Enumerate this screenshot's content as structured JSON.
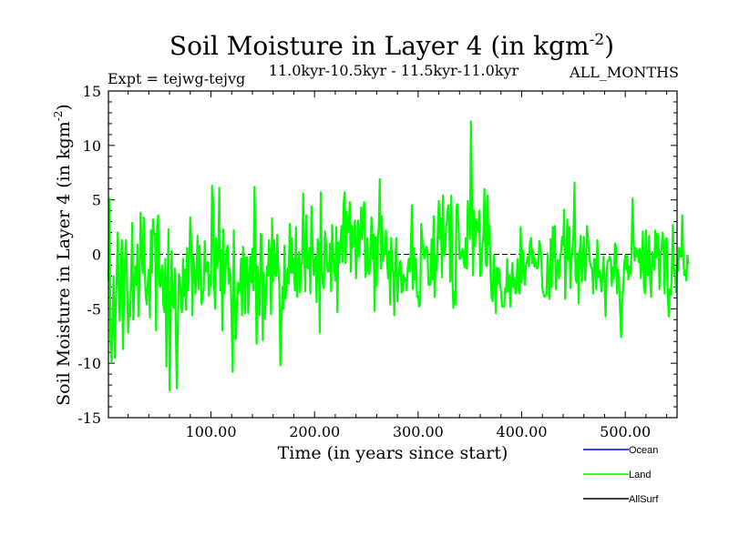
{
  "chart_data": {
    "type": "line",
    "title": "Soil Moisture in Layer 4 (in kgm",
    "title_sup": "-2",
    "title_close": ")",
    "subtitle_left": "Expt = tejwg-tejvg",
    "subtitle_center": "11.0kyr-10.5kyr - 11.5kyr-11.0kyr",
    "subtitle_right": "ALL_MONTHS",
    "xlabel": "Time (in years since start)",
    "ylabel": "Soil Moisture in Layer 4 (in kgm",
    "ylabel_sup": "-2",
    "ylabel_close": ")",
    "xlim": [
      1,
      550
    ],
    "ylim": [
      -15,
      15
    ],
    "xticks": [
      100,
      200,
      300,
      400,
      500
    ],
    "xtick_labels": [
      "100.00",
      "200.00",
      "300.00",
      "400.00",
      "500.00"
    ],
    "yticks": [
      15,
      10,
      5,
      0,
      -5,
      -10,
      -15
    ],
    "ytick_labels": [
      "15",
      "10",
      "5",
      "0",
      "-5",
      "-10",
      "-15"
    ],
    "zero_line": 0,
    "legend_position": "bottom-right",
    "series": [
      {
        "name": "Ocean",
        "color": "#0000ff",
        "values": []
      },
      {
        "name": "Land",
        "color": "#00ff00",
        "x_start": 1,
        "x_step": 1,
        "values": [
          -2.5,
          5.1,
          -7.8,
          -9.9,
          -6.2,
          -2,
          -9.5,
          -4.9,
          -2.2,
          2,
          -3.7,
          -6.1,
          -1.5,
          1.3,
          -8.7,
          -4.2,
          -0.5,
          1.3,
          -2.8,
          -7.2,
          -4.6,
          -5.7,
          -1.8,
          2.9,
          -6,
          -3,
          -1.1,
          -2.8,
          0.9,
          -5.7,
          -3,
          3.8,
          0.3,
          -1.7,
          3.4,
          -1.3,
          -3.8,
          -4.6,
          -2.6,
          -1.4,
          -5.8,
          2.2,
          -1.7,
          3.2,
          1.9,
          1.9,
          -7,
          2.5,
          3.6,
          -2.6,
          -3,
          -1.6,
          -1,
          -4.6,
          -5.3,
          -0.4,
          -10.3,
          -2.9,
          2.3,
          -12.5,
          -6,
          0.3,
          -4.6,
          -4.9,
          -1.3,
          -6.5,
          -12.3,
          -6.6,
          -1.8,
          -2.2,
          -4.2,
          -5.3,
          -0.4,
          -3.8,
          -1.4,
          -5.1,
          0.6,
          -3.3,
          -0.5,
          3.4,
          0.8,
          -5.6,
          -0.2,
          -1.4,
          -3.6,
          -1.7,
          1.7,
          -3.2,
          0.8,
          -1.9,
          -4.6,
          -3.7,
          -3.2,
          1.2,
          -1.6,
          -1.4,
          -0.7,
          -3.8,
          -1.9,
          -2.9,
          6.3,
          5,
          -2.6,
          -5,
          1.5,
          -1.2,
          -0.2,
          6.1,
          -3.3,
          0.4,
          -7,
          2.3,
          -3.6,
          -1.5,
          0.3,
          0.8,
          -2.7,
          -1.3,
          -1.9,
          -6.4,
          -10.8,
          2.2,
          -4,
          -7.8,
          -4.9,
          -2.6,
          -3.5,
          -3.1,
          -0.4,
          -5.6,
          0.7,
          -0.5,
          -5.4,
          -0.3,
          -0.3,
          -5.4,
          -2.2,
          -0.2,
          -2.6,
          0.5,
          -3.3,
          6.2,
          0.4,
          -8.2,
          -1.1,
          -3.6,
          -5.6,
          1.9,
          1.7,
          -7.9,
          -1.7,
          -5.9,
          -4.1,
          -1.1,
          -1.9,
          1.3,
          -0.1,
          -5.5,
          3.3,
          -2.5,
          1.3,
          -1.6,
          -2,
          1.8,
          -1.4,
          -2.8,
          -10.2,
          -6.1,
          -3,
          -5,
          0.8,
          -4.1,
          -2.6,
          -1.3,
          -2.7,
          2.8,
          -1.7,
          1.5,
          -1.7,
          -0.4,
          -3.3,
          2.5,
          -3.9,
          -0.8,
          0.2,
          -3.5,
          -0.9,
          -0.9,
          5.6,
          0.2,
          -3.4,
          3.6,
          -1.2,
          -1.3,
          0.6,
          -3.6,
          4.4,
          1.2,
          -1.9,
          -0.8,
          -0.2,
          -4.4,
          1.4,
          0.9,
          -7.2,
          5.7,
          -1.4,
          -2.7,
          -3.1,
          2.1,
          1.2,
          -0.9,
          -1.6,
          -1.5,
          1,
          -3.4,
          2.7,
          -0.1,
          -1.2,
          -2.4,
          2.5,
          -5.3,
          1.1,
          -0.8,
          1.1,
          2.6,
          -0.7,
          4.5,
          5.7,
          -0.8,
          3.9,
          2,
          2.5,
          4.8,
          -1.6,
          2.6,
          0.6,
          1.4,
          3.1,
          -2.2,
          -0.1,
          3.1,
          -0.2,
          1.7,
          4.3,
          1.4,
          3.8,
          4.8,
          -2.1,
          -1.5,
          1.5,
          -1.5,
          -1.8,
          0.4,
          3.4,
          -0.4,
          1.8,
          -5.2,
          1.6,
          -2.9,
          1.4,
          2.5,
          6.9,
          -1.3,
          3.5,
          -0.6,
          -0.1,
          0.1,
          2.2,
          -0.7,
          -2.2,
          0.3,
          -4.6,
          1.5,
          -1.3,
          -1.7,
          -5.6,
          -0.1,
          1.5,
          -4.3,
          -2.4,
          -1.1,
          -0.6,
          -3.5,
          -3.4,
          -1.9,
          -2.5,
          -2.2,
          -3.3,
          -1.2,
          -0.4,
          -1.6,
          0.6,
          4.5,
          -3.2,
          0.6,
          -2.3,
          -0.4,
          -3.9,
          -3.8,
          -4.8,
          -4.5,
          2.8,
          1.4,
          0.4,
          -0.4,
          0.4,
          0.7,
          0.4,
          -2.8,
          -2.8,
          -2.7,
          1.4,
          -2.3,
          3.5,
          -3.9,
          -0.1,
          -1.5,
          2.4,
          4.9,
          1.4,
          3.3,
          -2.1,
          5.4,
          -0.1,
          0.3,
          2.5,
          3.2,
          4.5,
          3.3,
          -2.5,
          5.4,
          -1.7,
          -4.9,
          -3.4,
          -4.6,
          4.4,
          4.6,
          2.6,
          -0.4,
          -0.4,
          0.2,
          0.5,
          -0.7,
          -1.2,
          1.5,
          -1.3,
          4.9,
          2.9,
          1.4,
          12.2,
          5.3,
          -1.9,
          4,
          0.8,
          3.2,
          2.5,
          2.1,
          4,
          -2,
          -1.6,
          0.7,
          1.7,
          6,
          -0.6,
          -1.1,
          5.4,
          0.9,
          2.6,
          -2,
          -4,
          -4.3,
          -0.1,
          -2.8,
          -5.4,
          -1.2,
          -2.7,
          -1.3,
          -2.5,
          -3.4,
          -4.8,
          -4.8,
          -4.8,
          -3.1,
          -3.5,
          -0.4,
          -3.4,
          -1.9,
          -4.8,
          -2.4,
          -0.8,
          -3,
          -2.2,
          -3.6,
          -2.6,
          -0.4,
          -3.3,
          -3.6,
          2.5,
          -2.6,
          0.4,
          -1.4,
          -2.8,
          -1.1,
          -0.6,
          -0.2,
          -1.1,
          1.1,
          1.5,
          -0.8,
          0.4,
          -1.1,
          -0.4,
          -1.2,
          -1.3,
          -1.1,
          1.2,
          0.8,
          -0.7,
          -3.2,
          -3.6,
          -3.9,
          -3.8,
          -3.7,
          0.1,
          -2.3,
          -4.1,
          1.4,
          -3,
          2.5,
          -0.3,
          2.6,
          -3.2,
          -1.5,
          -0.5,
          -2.2,
          -0.6,
          0.2,
          1.6,
          0.9,
          4.1,
          -4.1,
          -0.9,
          3.2,
          -0.5,
          2.5,
          -3.1,
          -0.6,
          0.6,
          1.9,
          6.6,
          -2.2,
          -2.6,
          0.1,
          -4.5,
          0.3,
          1.7,
          -2.5,
          -0.5,
          1.6,
          -2.4,
          -1.5,
          2.6,
          1.4,
          0.3,
          -0.8,
          -1.2,
          -1.3,
          -3.6,
          -0.4,
          -0.5,
          -3.2,
          1.3,
          -2.1,
          -1.5,
          -2.1,
          -3.4,
          -2.1,
          -0.2,
          -2.7,
          -5.7,
          -1.6,
          -0.6,
          -0.6,
          -0.2,
          -0.6,
          -2.9,
          -1.2,
          -2.2,
          1,
          0.7,
          -3.6,
          -1.4,
          -2.4,
          -5.1,
          -7.6,
          -4.3,
          -3.1,
          -0.9,
          -0.1,
          -1.4,
          -0.2,
          -2.3,
          -1.1,
          -1.8,
          0.1,
          5.1,
          1.3,
          -0.6,
          0.6,
          -0.2,
          0.4,
          -0.7,
          0.5,
          -2.2,
          -0.9,
          2.1,
          -3,
          -3.6,
          2.2,
          -0.6,
          -1.9,
          1.7,
          -2.4,
          -3.9,
          0.2,
          -0.6,
          -1.4,
          2.2,
          -0.3,
          1.9,
          1.5,
          -3.2,
          0.1,
          0.5,
          2,
          0.7,
          -3.6,
          1.3,
          1.5,
          -3.6,
          -5.7,
          -3.2,
          -3.7,
          -1.2,
          2.7,
          -1.8,
          -1.4,
          -3.5,
          -1.1,
          -1.5,
          0.6,
          -0.2,
          -0.2,
          3.6,
          -0.4,
          -1.9,
          -1.5,
          -2.4,
          -0.1,
          -0.9
        ]
      },
      {
        "name": "AllSurf",
        "color": "#000000",
        "values": []
      }
    ]
  }
}
